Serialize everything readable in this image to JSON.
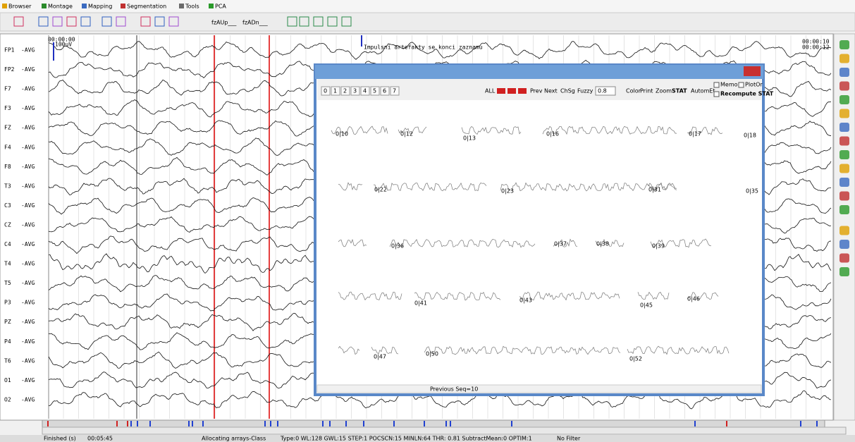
{
  "menu": [
    "Browser",
    "Montage",
    "Mapping",
    "Segmentation",
    "Tools",
    "PCA"
  ],
  "toolbar": [
    "fzAUp___",
    "fzADn___"
  ],
  "channels": [
    {
      "name": "FP1",
      "ref": "-AVG"
    },
    {
      "name": "FP2",
      "ref": "-AVG"
    },
    {
      "name": "F7",
      "ref": "-AVG"
    },
    {
      "name": "F3",
      "ref": "-AVG"
    },
    {
      "name": "FZ",
      "ref": "-AVG"
    },
    {
      "name": "F4",
      "ref": "-AVG"
    },
    {
      "name": "F8",
      "ref": "-AVG"
    },
    {
      "name": "T3",
      "ref": "-AVG"
    },
    {
      "name": "C3",
      "ref": "-AVG"
    },
    {
      "name": "CZ",
      "ref": "-AVG"
    },
    {
      "name": "C4",
      "ref": "-AVG"
    },
    {
      "name": "T4",
      "ref": "-AVG"
    },
    {
      "name": "T5",
      "ref": "-AVG"
    },
    {
      "name": "P3",
      "ref": "-AVG"
    },
    {
      "name": "PZ",
      "ref": "-AVG"
    },
    {
      "name": "P4",
      "ref": "-AVG"
    },
    {
      "name": "T6",
      "ref": "-AVG"
    },
    {
      "name": "O1",
      "ref": "-AVG"
    },
    {
      "name": "O2",
      "ref": "-AVG"
    }
  ],
  "time_left": "00:00:00",
  "scale": "100uV",
  "time_right": [
    "00:00:10",
    "00:00:12"
  ],
  "annotation": "Impulsni artefakty se konci zaznamu",
  "dialog": {
    "tabs": [
      "0",
      "1",
      "2",
      "3",
      "4",
      "5",
      "6",
      "7"
    ],
    "buttons": [
      "ALL",
      "Prev",
      "Next",
      "ChSg",
      "Fuzzy",
      "Color",
      "Print",
      "Zoom",
      "STAT",
      "AutomEt"
    ],
    "select": "0.8",
    "checks": [
      "Memo",
      "PlotOr",
      "Recompute STAT"
    ],
    "segments": [
      "0|10",
      "0|12",
      "0|13",
      "0|16",
      "0|17",
      "0|18",
      "0|22",
      "0|23",
      "0|31",
      "0|35",
      "0|36",
      "0|37",
      "0|38",
      "0|39",
      "0|41",
      "0|43",
      "0|45",
      "0|46",
      "0|47",
      "0|50",
      "0|52"
    ],
    "status": "Previous Seq=10"
  },
  "status": [
    "Finished (s)",
    "00:05:45",
    "Allocating arrays-Class",
    "Type:0 WL:128 GWL:15 STEP:1 POCSCN:15 MINLN:64 THR: 0.81 SubtractMean:0 OPTIM:1",
    "No Filter"
  ]
}
